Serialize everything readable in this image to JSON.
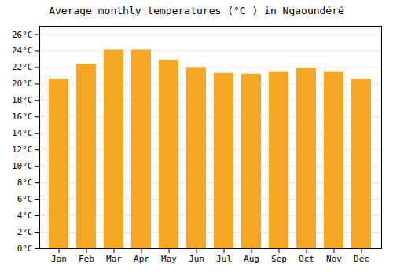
{
  "chart_data": {
    "type": "bar",
    "title": "Average monthly temperatures (°C ) in Ngaoundéré",
    "categories": [
      "Jan",
      "Feb",
      "Mar",
      "Apr",
      "May",
      "Jun",
      "Jul",
      "Aug",
      "Sep",
      "Oct",
      "Nov",
      "Dec"
    ],
    "values": [
      20.6,
      22.4,
      24.1,
      24.1,
      22.9,
      22.0,
      21.3,
      21.2,
      21.5,
      21.9,
      21.5,
      20.6
    ],
    "color": "#F5A623",
    "ylim": [
      0,
      27
    ],
    "yticks": [
      {
        "value": 0,
        "label": "0°C"
      },
      {
        "value": 2,
        "label": "2°C"
      },
      {
        "value": 4,
        "label": "4°C"
      },
      {
        "value": 6,
        "label": "6°C"
      },
      {
        "value": 8,
        "label": "8°C"
      },
      {
        "value": 10,
        "label": "10°C"
      },
      {
        "value": 12,
        "label": "12°C"
      },
      {
        "value": 14,
        "label": "14°C"
      },
      {
        "value": 16,
        "label": "16°C"
      },
      {
        "value": 18,
        "label": "18°C"
      },
      {
        "value": 20,
        "label": "20°C"
      },
      {
        "value": 22,
        "label": "22°C"
      },
      {
        "value": 24,
        "label": "24°C"
      },
      {
        "value": 26,
        "label": "26°C"
      }
    ],
    "grid": true
  }
}
